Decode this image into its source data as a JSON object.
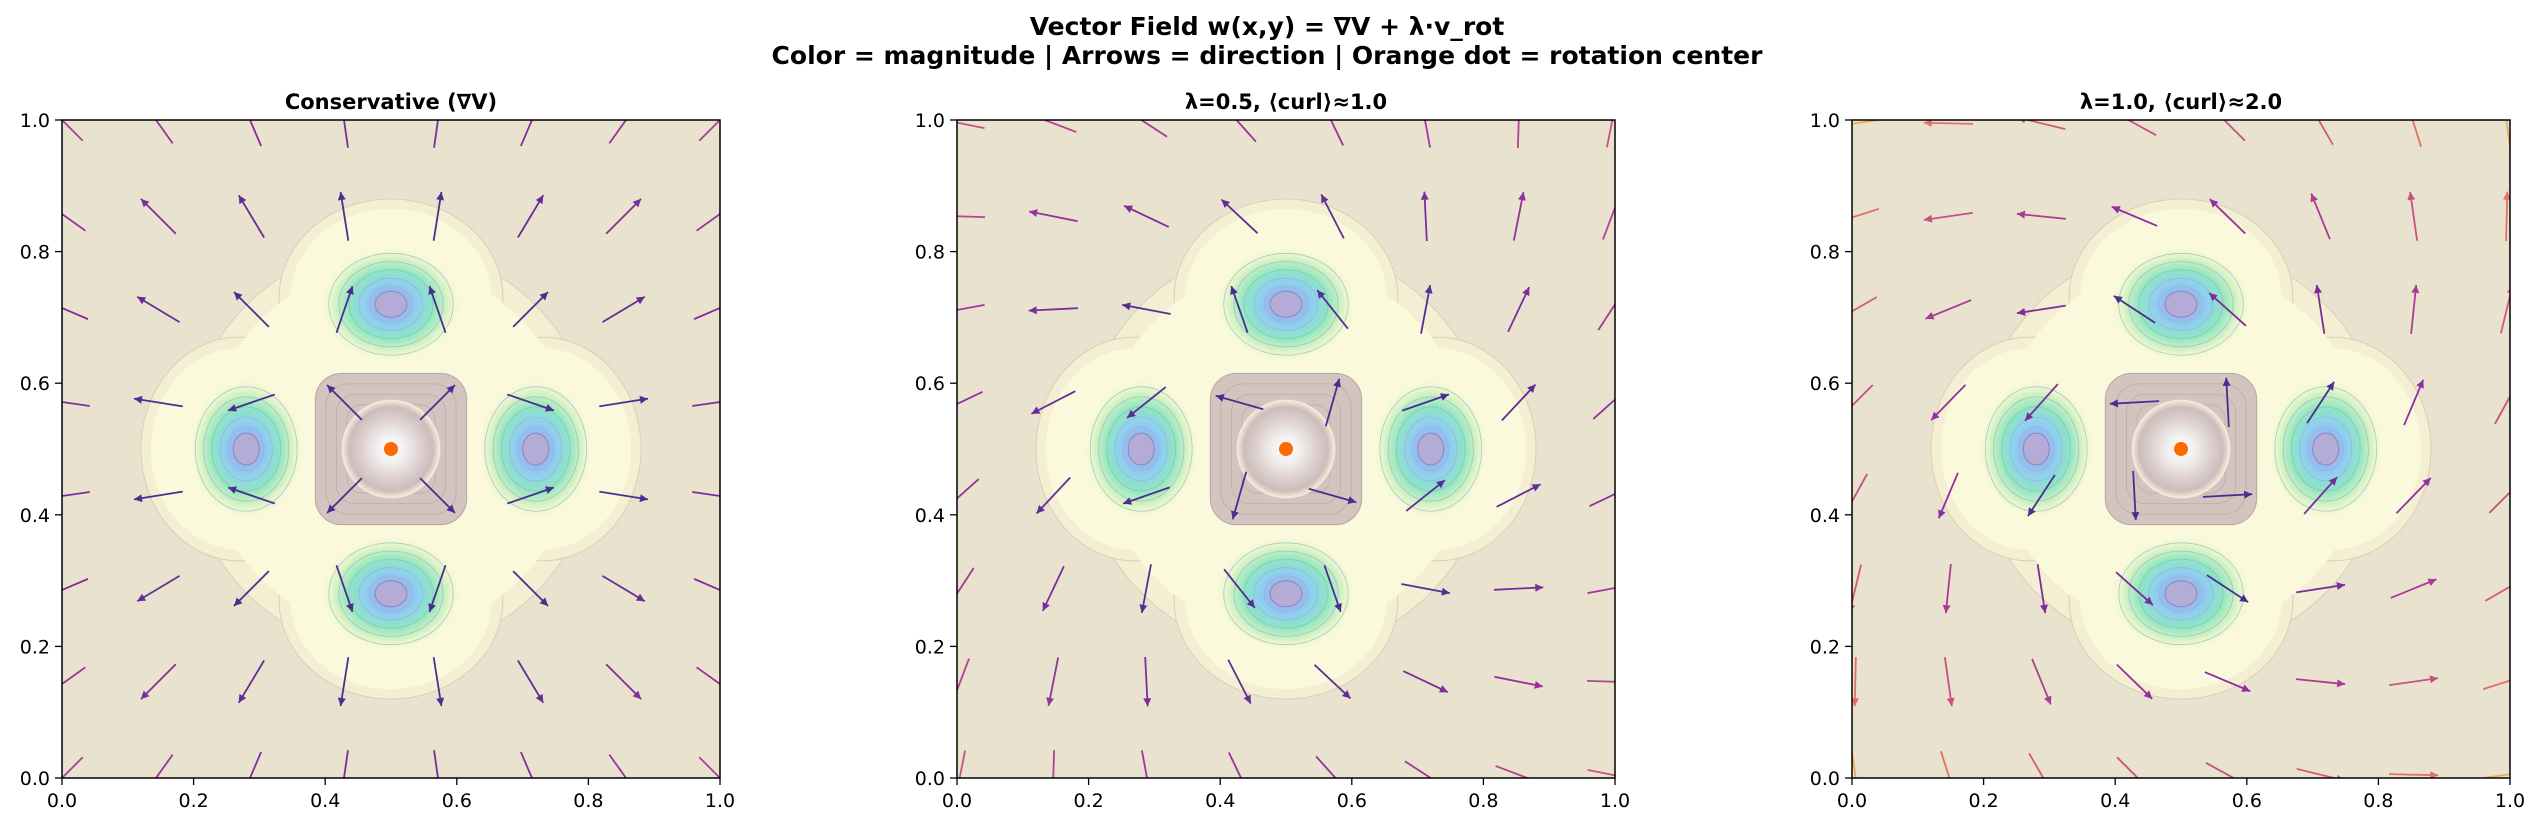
{
  "figure": {
    "title_line1": "Vector Field w(x,y) = ∇V + λ·v_rot",
    "title_line2": "Color = magnitude | Arrows = direction | Orange dot = rotation center"
  },
  "colors": {
    "background": "#e9e2cf",
    "center_dot": "#ff6a00",
    "low_magnitude_arrow": "#4a2d8f",
    "high_magnitude_arrow": "#f2e94e"
  },
  "chart_data": [
    {
      "type": "contour-quiver",
      "title": "Conservative (∇V)",
      "lambda": 0,
      "xlim": [
        0,
        1
      ],
      "ylim": [
        0,
        1
      ],
      "xticks": [
        "0.0",
        "0.2",
        "0.4",
        "0.6",
        "0.8",
        "1.0"
      ],
      "yticks": [
        "0.0",
        "0.2",
        "0.4",
        "0.6",
        "0.8",
        "1.0"
      ],
      "rotation_center": [
        0.5,
        0.5
      ],
      "wells": [
        [
          0.28,
          0.5
        ],
        [
          0.72,
          0.5
        ],
        [
          0.5,
          0.72
        ],
        [
          0.5,
          0.28
        ]
      ]
    },
    {
      "type": "contour-quiver",
      "title": "λ=0.5, ⟨curl⟩≈1.0",
      "lambda": 0.5,
      "xlim": [
        0,
        1
      ],
      "ylim": [
        0,
        1
      ],
      "xticks": [
        "0.0",
        "0.2",
        "0.4",
        "0.6",
        "0.8",
        "1.0"
      ],
      "yticks": [
        "0.0",
        "0.2",
        "0.4",
        "0.6",
        "0.8",
        "1.0"
      ],
      "rotation_center": [
        0.5,
        0.5
      ],
      "wells": [
        [
          0.28,
          0.5
        ],
        [
          0.72,
          0.5
        ],
        [
          0.5,
          0.72
        ],
        [
          0.5,
          0.28
        ]
      ]
    },
    {
      "type": "contour-quiver",
      "title": "λ=1.0, ⟨curl⟩≈2.0",
      "lambda": 1.0,
      "xlim": [
        0,
        1
      ],
      "ylim": [
        0,
        1
      ],
      "xticks": [
        "0.0",
        "0.2",
        "0.4",
        "0.6",
        "0.8",
        "1.0"
      ],
      "yticks": [
        "0.0",
        "0.2",
        "0.4",
        "0.6",
        "0.8",
        "1.0"
      ],
      "rotation_center": [
        0.5,
        0.5
      ],
      "wells": [
        [
          0.28,
          0.5
        ],
        [
          0.72,
          0.5
        ],
        [
          0.5,
          0.72
        ],
        [
          0.5,
          0.28
        ]
      ]
    }
  ]
}
